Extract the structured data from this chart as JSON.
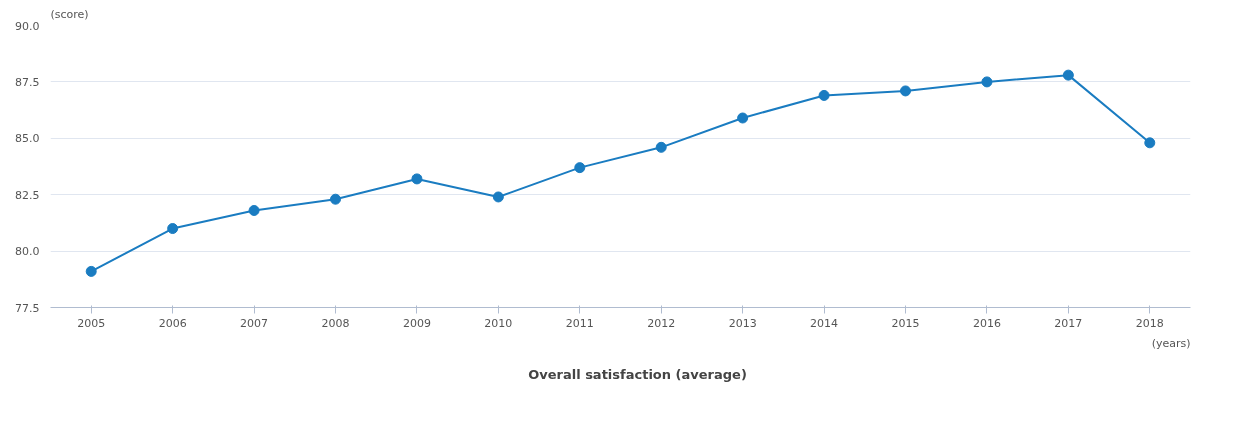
{
  "chart_data": {
    "type": "line",
    "xlabel": "(years)",
    "ylabel": "(score)",
    "categories": [
      "2005",
      "2006",
      "2007",
      "2008",
      "2009",
      "2010",
      "2011",
      "2012",
      "2013",
      "2014",
      "2015",
      "2016",
      "2017",
      "2018"
    ],
    "series": [
      {
        "name": "Overall satisfaction (average)",
        "color": "#1a7cc1",
        "values": [
          79.1,
          81.0,
          81.8,
          82.3,
          83.2,
          82.4,
          83.7,
          84.6,
          85.9,
          86.9,
          87.1,
          87.5,
          87.8,
          84.8
        ]
      }
    ],
    "ylim": [
      77.5,
      90.0
    ],
    "yticks": [
      {
        "value": 77.5,
        "label": "77.5"
      },
      {
        "value": 80,
        "label": "80.0"
      },
      {
        "value": 82.5,
        "label": "82.5"
      },
      {
        "value": 85,
        "label": "85.0"
      },
      {
        "value": 87.5,
        "label": "87.5"
      },
      {
        "value": 90,
        "label": "90.0"
      }
    ],
    "grid": "y",
    "legend": "bottom",
    "marker": "circle",
    "line_style": "solid"
  }
}
